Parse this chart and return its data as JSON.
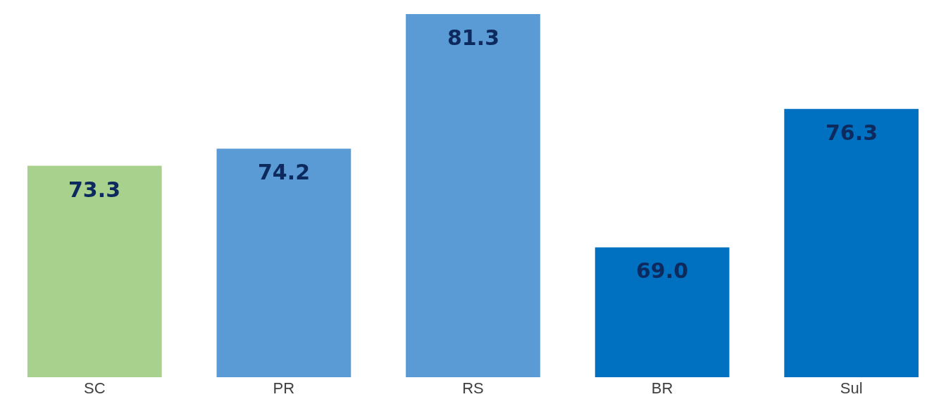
{
  "chart_data": {
    "type": "bar",
    "categories": [
      "SC",
      "PR",
      "RS",
      "BR",
      "Sul"
    ],
    "values": [
      73.3,
      74.2,
      81.3,
      69.0,
      76.3
    ],
    "colors": [
      "#a9d18e",
      "#5b9bd5",
      "#5b9bd5",
      "#0070c0",
      "#0070c0"
    ],
    "value_labels": [
      "73.3",
      "74.2",
      "81.3",
      "69.0",
      "76.3"
    ]
  }
}
